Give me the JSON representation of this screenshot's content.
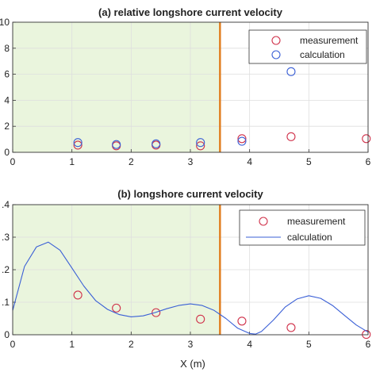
{
  "chart_data": [
    {
      "type": "scatter",
      "title": "(a) relative longshore current velocity",
      "xlabel": "",
      "ylabel": "",
      "xlim": [
        0,
        6
      ],
      "ylim": [
        0,
        10
      ],
      "x_ticks": [
        "0",
        "1",
        "2",
        "3",
        "4",
        "5",
        "6"
      ],
      "y_ticks": [
        "0",
        "2",
        "4",
        "6",
        "8",
        "10"
      ],
      "grid": true,
      "shaded_region_x": [
        0,
        3.5
      ],
      "vertical_line_x": 3.5,
      "legend_position": "top-right",
      "series": [
        {
          "name": "measurement",
          "marker": "circle",
          "color": "#d0314a",
          "x": [
            1.1,
            1.75,
            2.42,
            3.17,
            3.87,
            4.7,
            5.97
          ],
          "y": [
            0.55,
            0.5,
            0.55,
            0.5,
            1.05,
            1.2,
            1.05
          ]
        },
        {
          "name": "calculation",
          "marker": "circle",
          "color": "#3a5fd6",
          "x": [
            1.1,
            1.75,
            2.42,
            3.17,
            3.87,
            4.7
          ],
          "y": [
            0.75,
            0.6,
            0.65,
            0.75,
            0.85,
            6.2
          ]
        }
      ]
    },
    {
      "type": "line",
      "title": "(b) longshore current velocity",
      "xlabel": "X (m)",
      "ylabel": "",
      "xlim": [
        0,
        6
      ],
      "ylim": [
        0,
        0.4
      ],
      "x_ticks": [
        "0",
        "1",
        "2",
        "3",
        "4",
        "5",
        "6"
      ],
      "y_ticks": [
        "0",
        ".1",
        ".2",
        ".3",
        ".4"
      ],
      "grid": true,
      "shaded_region_x": [
        0,
        3.5
      ],
      "vertical_line_x": 3.5,
      "legend_position": "top-right",
      "series": [
        {
          "name": "measurement",
          "marker": "circle",
          "color": "#d0314a",
          "x": [
            1.1,
            1.75,
            2.42,
            3.17,
            3.87,
            4.7,
            5.97
          ],
          "y": [
            0.122,
            0.082,
            0.068,
            0.048,
            0.042,
            0.022,
            0.001
          ]
        },
        {
          "name": "calculation",
          "marker": "line",
          "color": "#3a5fd6",
          "x": [
            0,
            0.2,
            0.4,
            0.6,
            0.8,
            1.0,
            1.2,
            1.4,
            1.6,
            1.8,
            2.0,
            2.2,
            2.4,
            2.6,
            2.8,
            3.0,
            3.2,
            3.4,
            3.6,
            3.8,
            4.0,
            4.1,
            4.2,
            4.4,
            4.6,
            4.8,
            5.0,
            5.2,
            5.4,
            5.6,
            5.8,
            6.0
          ],
          "y": [
            0.075,
            0.21,
            0.27,
            0.285,
            0.26,
            0.205,
            0.15,
            0.105,
            0.078,
            0.062,
            0.055,
            0.058,
            0.068,
            0.08,
            0.09,
            0.095,
            0.09,
            0.075,
            0.05,
            0.02,
            0.004,
            0.002,
            0.01,
            0.045,
            0.085,
            0.11,
            0.12,
            0.112,
            0.09,
            0.06,
            0.03,
            0.008
          ]
        }
      ]
    }
  ],
  "colors": {
    "shade": "#eaf5dd",
    "vertical_line": "#e07b1a",
    "grid": "#dedede",
    "axis": "#333333"
  }
}
